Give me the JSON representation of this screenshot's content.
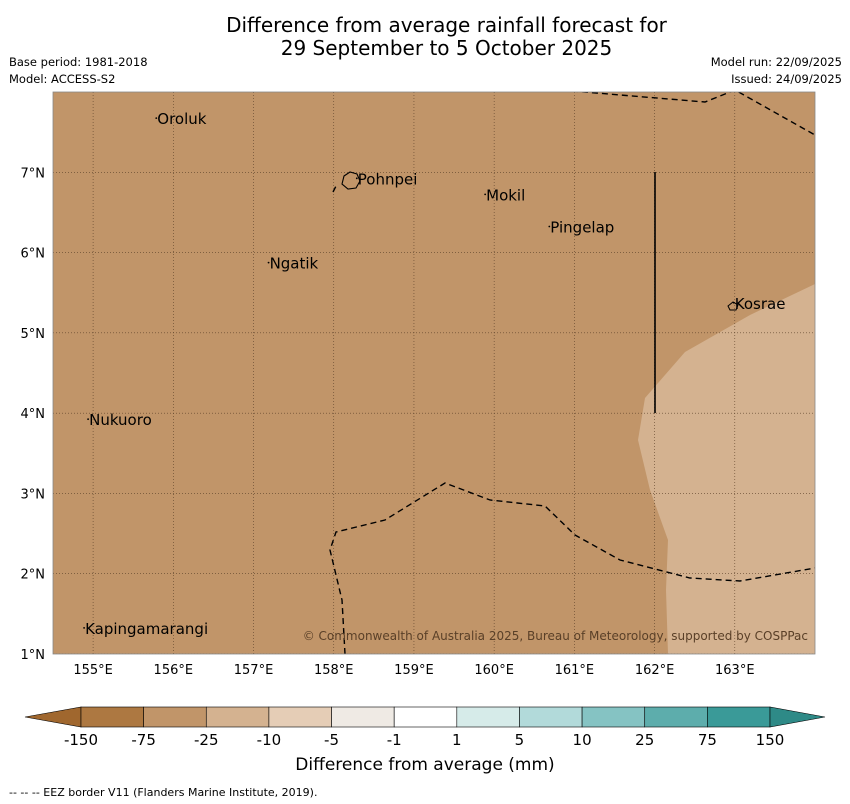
{
  "title": {
    "line1": "Difference from average rainfall forecast for",
    "line2": "29 September to 5 October 2025"
  },
  "meta_left": {
    "base_period": "Base period: 1981-2018",
    "model": "Model: ACCESS-S2"
  },
  "meta_right": {
    "model_run": "Model run: 22/09/2025",
    "issued": "Issued: 24/09/2025"
  },
  "map": {
    "lon_range": [
      154.5,
      164.0
    ],
    "lat_range": [
      1.0,
      8.0
    ],
    "lon_ticks": [
      "155°E",
      "156°E",
      "157°E",
      "158°E",
      "159°E",
      "160°E",
      "161°E",
      "162°E",
      "163°E"
    ],
    "lat_ticks": [
      "1°N",
      "2°N",
      "3°N",
      "4°N",
      "5°N",
      "6°N",
      "7°N"
    ],
    "places": [
      {
        "name": "Oroluk",
        "lon": 155.8,
        "lat": 7.6
      },
      {
        "name": "Pohnpei",
        "lon": 158.3,
        "lat": 6.85
      },
      {
        "name": "Mokil",
        "lon": 159.9,
        "lat": 6.65
      },
      {
        "name": "Pingelap",
        "lon": 160.7,
        "lat": 6.25
      },
      {
        "name": "Ngatik",
        "lon": 157.2,
        "lat": 5.8
      },
      {
        "name": "Kosrae",
        "lon": 163.0,
        "lat": 5.3
      },
      {
        "name": "Nukuoro",
        "lon": 154.95,
        "lat": 3.85
      },
      {
        "name": "Kapingamarangi",
        "lon": 154.9,
        "lat": 1.25
      }
    ],
    "copyright": "© Commonwealth of Australia 2025, Bureau of Meteorology, supported by COSPPac",
    "fill_colors": {
      "main": "#c19569",
      "lighter": "#d4b290"
    }
  },
  "colorbar": {
    "tick_labels": [
      "-150",
      "-75",
      "-25",
      "-10",
      "-5",
      "-1",
      "1",
      "5",
      "10",
      "25",
      "75",
      "150"
    ],
    "colors": [
      "#ad7841",
      "#c19569",
      "#d4b290",
      "#e5cdb6",
      "#efeae4",
      "#ffffff",
      "#d6ebe9",
      "#b2dada",
      "#85c3c3",
      "#5dadac",
      "#3a9a98"
    ],
    "under_color": "#a0672e",
    "over_color": "#2e8a87",
    "label": "Difference from average (mm)"
  },
  "footer": "-- -- -- EEZ border V11 (Flanders Marine Institute, 2019)."
}
